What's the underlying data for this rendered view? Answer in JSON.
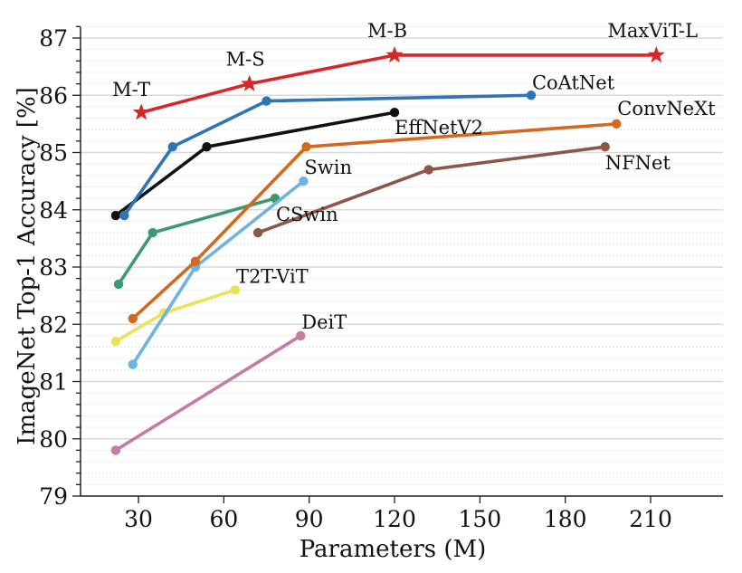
{
  "chart_data": {
    "type": "line",
    "title": "",
    "xlabel": "Parameters (M)",
    "ylabel": "ImageNet Top-1 Accuracy [%]",
    "xlim": [
      10,
      235
    ],
    "ylim": [
      79,
      87.2
    ],
    "xticks": [
      30,
      60,
      90,
      120,
      150,
      180,
      210
    ],
    "yticks": [
      79,
      80,
      81,
      82,
      83,
      84,
      85,
      86,
      87
    ],
    "y_minor_step": 0.2,
    "grid": "horizontal major solid, minor dotted",
    "legend": "none (direct labels)",
    "series": [
      {
        "name": "MaxViT",
        "color": "#d62728",
        "marker": "star",
        "points": [
          [
            31,
            85.7
          ],
          [
            69,
            86.2
          ],
          [
            120,
            86.7
          ],
          [
            212,
            86.7
          ]
        ],
        "point_labels": [
          "M-T",
          "M-S",
          "M-B",
          "MaxViT-L"
        ]
      },
      {
        "name": "CoAtNet",
        "color": "#2e75b6",
        "marker": "circle",
        "points": [
          [
            25,
            83.9
          ],
          [
            42,
            85.1
          ],
          [
            75,
            85.9
          ],
          [
            168,
            86.0
          ]
        ],
        "label": "CoAtNet"
      },
      {
        "name": "EffNetV2",
        "color": "#111111",
        "marker": "circle",
        "points": [
          [
            22,
            83.9
          ],
          [
            54,
            85.1
          ],
          [
            120,
            85.7
          ]
        ],
        "label": "EffNetV2"
      },
      {
        "name": "ConvNeXt",
        "color": "#d2691e",
        "marker": "circle",
        "points": [
          [
            28,
            82.1
          ],
          [
            50,
            83.1
          ],
          [
            89,
            85.1
          ],
          [
            198,
            85.5
          ]
        ],
        "label": "ConvNeXt"
      },
      {
        "name": "NFNet",
        "color": "#8c564b",
        "marker": "circle",
        "points": [
          [
            72,
            83.6
          ],
          [
            132,
            84.7
          ],
          [
            194,
            85.1
          ]
        ],
        "label": "NFNet"
      },
      {
        "name": "Swin",
        "color": "#6cb4e4",
        "marker": "circle",
        "points": [
          [
            28,
            81.3
          ],
          [
            50,
            83.0
          ],
          [
            88,
            84.5
          ]
        ],
        "label": "Swin"
      },
      {
        "name": "CSwin",
        "color": "#3d9970",
        "marker": "circle",
        "points": [
          [
            23,
            82.7
          ],
          [
            35,
            83.6
          ],
          [
            78,
            84.2
          ]
        ],
        "label": "CSwin"
      },
      {
        "name": "T2T-ViT",
        "color": "#ece25a",
        "marker": "circle",
        "points": [
          [
            22,
            81.7
          ],
          [
            39,
            82.2
          ],
          [
            64,
            82.6
          ]
        ],
        "label": "T2T-ViT"
      },
      {
        "name": "DeiT",
        "color": "#c77aa3",
        "marker": "circle",
        "points": [
          [
            22,
            79.8
          ],
          [
            87,
            81.8
          ]
        ],
        "label": "DeiT"
      }
    ]
  }
}
